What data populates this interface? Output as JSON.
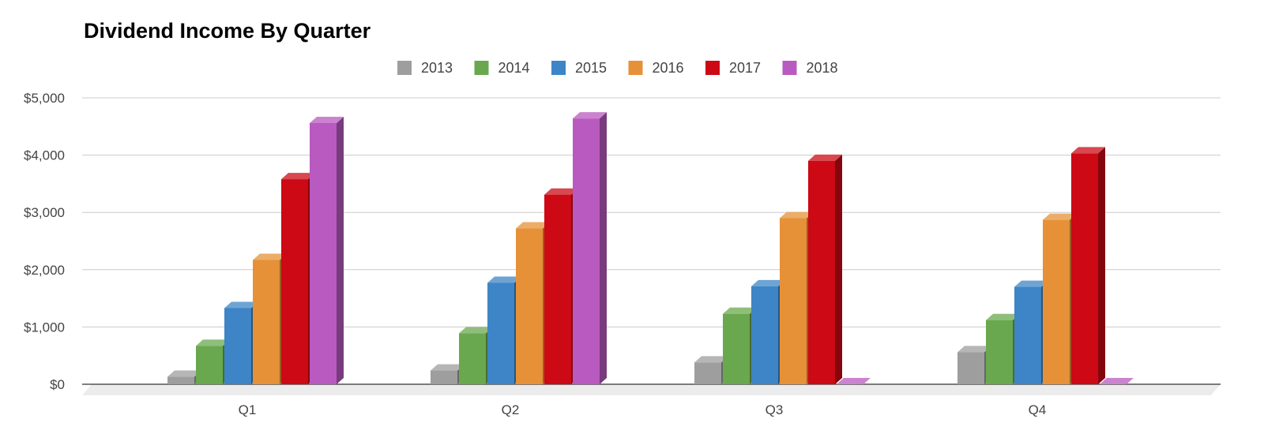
{
  "chart_data": {
    "type": "bar",
    "title": "Dividend Income By Quarter",
    "xlabel": "",
    "ylabel": "",
    "categories": [
      "Q1",
      "Q2",
      "Q3",
      "Q4"
    ],
    "series": [
      {
        "name": "2013",
        "color": "#9e9e9e",
        "values": [
          130,
          240,
          380,
          560
        ]
      },
      {
        "name": "2014",
        "color": "#6aa84f",
        "values": [
          670,
          890,
          1230,
          1120
        ]
      },
      {
        "name": "2015",
        "color": "#3d85c6",
        "values": [
          1330,
          1770,
          1710,
          1700
        ]
      },
      {
        "name": "2016",
        "color": "#e69138",
        "values": [
          2170,
          2720,
          2900,
          2870
        ]
      },
      {
        "name": "2017",
        "color": "#cc0914",
        "values": [
          3580,
          3310,
          3900,
          4030
        ]
      },
      {
        "name": "2018",
        "color": "#b95ac0",
        "values": [
          4560,
          4640,
          0,
          0
        ]
      }
    ],
    "ylim": [
      0,
      5000
    ],
    "yticks": [
      0,
      1000,
      2000,
      3000,
      4000,
      5000
    ],
    "ytick_labels": [
      "$0",
      "$1,000",
      "$2,000",
      "$3,000",
      "$4,000",
      "$5,000"
    ],
    "grid": true,
    "legend": "top-center",
    "style": "3d-columns"
  }
}
